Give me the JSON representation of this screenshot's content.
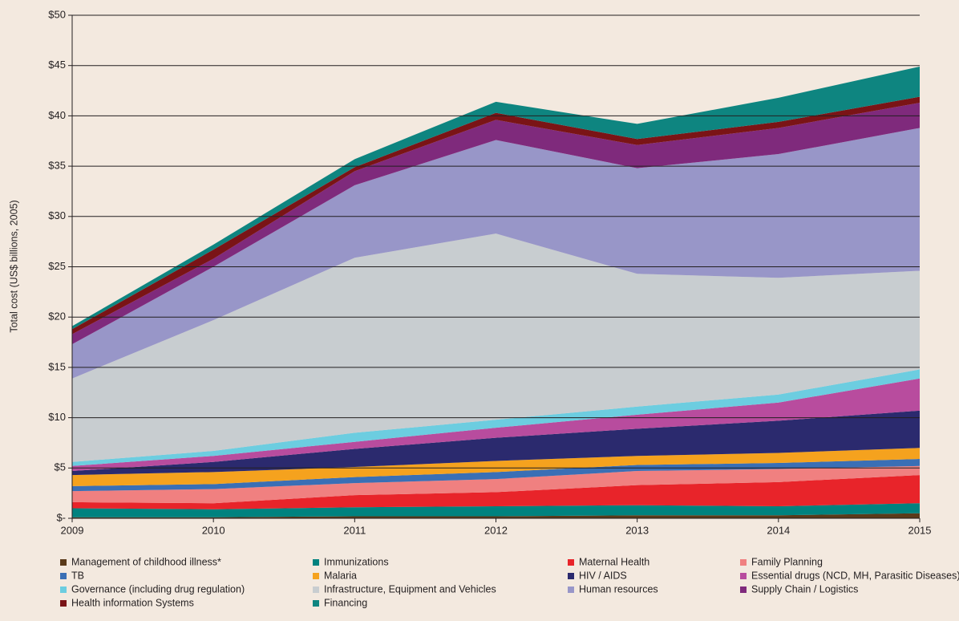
{
  "chart_data": {
    "type": "stacked-area",
    "y_label": "Total cost (US$ billions, 2005)",
    "x": [
      2009,
      2010,
      2011,
      2012,
      2013,
      2014,
      2015
    ],
    "xlim": [
      2009,
      2015
    ],
    "xticks": [
      2009,
      2010,
      2011,
      2012,
      2013,
      2014,
      2015
    ],
    "ylim": [
      0,
      50
    ],
    "yticks": [
      {
        "value": 0,
        "label": "$-"
      },
      {
        "value": 5,
        "label": "$5"
      },
      {
        "value": 10,
        "label": "$10"
      },
      {
        "value": 15,
        "label": "$15"
      },
      {
        "value": 20,
        "label": "$20"
      },
      {
        "value": 25,
        "label": "$25"
      },
      {
        "value": 30,
        "label": "$30"
      },
      {
        "value": 35,
        "label": "$35"
      },
      {
        "value": 40,
        "label": "$40"
      },
      {
        "value": 45,
        "label": "$45"
      },
      {
        "value": 50,
        "label": "$50"
      }
    ],
    "grid": true,
    "legend": "bottom",
    "series": [
      {
        "name": "Management of childhood illness*",
        "color": "#5a3a1a",
        "values": [
          0.1,
          0.1,
          0.2,
          0.2,
          0.3,
          0.3,
          0.5
        ]
      },
      {
        "name": "Immunizations",
        "color": "#00827f",
        "values": [
          0.9,
          0.8,
          0.9,
          1.0,
          1.0,
          0.9,
          1.0
        ]
      },
      {
        "name": "Maternal Health",
        "color": "#e8242a",
        "values": [
          0.6,
          0.6,
          1.2,
          1.4,
          2.0,
          2.4,
          2.8
        ]
      },
      {
        "name": "Family Planning",
        "color": "#f08080",
        "values": [
          1.1,
          1.4,
          1.2,
          1.3,
          1.4,
          1.3,
          0.9
        ]
      },
      {
        "name": "TB",
        "color": "#3a6fb5",
        "values": [
          0.5,
          0.5,
          0.6,
          0.7,
          0.6,
          0.6,
          0.7
        ]
      },
      {
        "name": "Malaria",
        "color": "#f5a21e",
        "values": [
          1.1,
          1.2,
          1.0,
          1.1,
          0.9,
          1.0,
          1.1
        ]
      },
      {
        "name": "HIV / AIDS",
        "color": "#2b2a6e",
        "values": [
          0.4,
          1.0,
          1.8,
          2.3,
          2.7,
          3.2,
          3.7
        ]
      },
      {
        "name": "Essential drugs (NCD, MH, Parasitic Diseases)",
        "color": "#b84c9e",
        "values": [
          0.5,
          0.6,
          0.7,
          1.0,
          1.4,
          1.8,
          3.2
        ]
      },
      {
        "name": "Governance (including drug regulation)",
        "color": "#6ccde0",
        "values": [
          0.4,
          0.5,
          0.9,
          0.8,
          0.8,
          0.8,
          0.9
        ]
      },
      {
        "name": "Infrastructure, Equipment and Vehicles",
        "color": "#c8cdd0",
        "values": [
          8.3,
          13.0,
          17.4,
          18.5,
          13.2,
          11.6,
          9.8
        ]
      },
      {
        "name": "Human resources",
        "color": "#9896c8",
        "values": [
          3.4,
          5.3,
          7.2,
          9.3,
          10.5,
          12.3,
          14.2
        ]
      },
      {
        "name": "Supply Chain / Logistics",
        "color": "#7f2a7c",
        "values": [
          1.0,
          0.8,
          1.4,
          2.0,
          2.3,
          2.6,
          2.5
        ]
      },
      {
        "name": "Health information Systems",
        "color": "#7a1416",
        "values": [
          0.5,
          0.9,
          0.4,
          0.7,
          0.6,
          0.6,
          0.6
        ]
      },
      {
        "name": "Financing",
        "color": "#0e8580",
        "values": [
          0.3,
          0.5,
          0.8,
          1.1,
          1.5,
          2.4,
          3.0
        ]
      }
    ]
  }
}
